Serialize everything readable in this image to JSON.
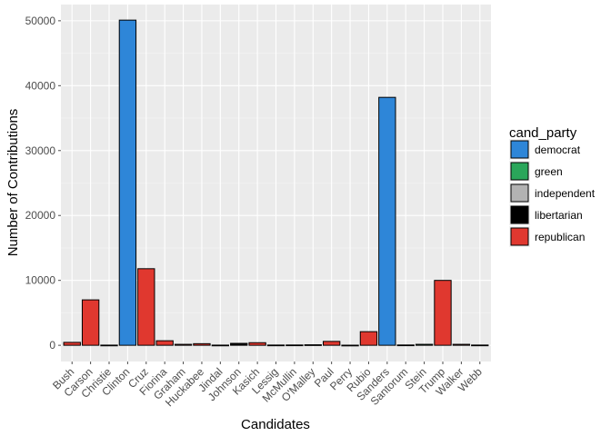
{
  "chart_data": {
    "type": "bar",
    "xlabel": "Candidates",
    "ylabel": "Number of Contributions",
    "ylim": [
      -2500,
      52500
    ],
    "yticks": [
      0,
      10000,
      20000,
      30000,
      40000,
      50000
    ],
    "grid": true,
    "legend": {
      "title": "cand_party",
      "placement": "right",
      "entries": [
        {
          "label": "democrat",
          "color": "#2e86d8"
        },
        {
          "label": "green",
          "color": "#2aa65a"
        },
        {
          "label": "independent",
          "color": "#b2b2b2"
        },
        {
          "label": "libertarian",
          "color": "#000000"
        },
        {
          "label": "republican",
          "color": "#e0382f"
        }
      ]
    },
    "categories": [
      "Bush",
      "Carson",
      "Christie",
      "Clinton",
      "Cruz",
      "Fiorina",
      "Graham",
      "Huckabee",
      "Jindal",
      "Johnson",
      "Kasich",
      "Lessig",
      "McMullin",
      "O'Malley",
      "Paul",
      "Perry",
      "Rubio",
      "Sanders",
      "Santorum",
      "Stein",
      "Trump",
      "Walker",
      "Webb"
    ],
    "values": [
      450,
      7000,
      30,
      50100,
      11800,
      700,
      150,
      250,
      30,
      300,
      400,
      40,
      50,
      80,
      600,
      20,
      2100,
      38200,
      50,
      150,
      10000,
      150,
      40
    ],
    "parties": [
      "republican",
      "republican",
      "republican",
      "democrat",
      "republican",
      "republican",
      "republican",
      "republican",
      "republican",
      "libertarian",
      "republican",
      "democrat",
      "independent",
      "democrat",
      "republican",
      "republican",
      "republican",
      "democrat",
      "republican",
      "green",
      "republican",
      "republican",
      "democrat"
    ]
  }
}
